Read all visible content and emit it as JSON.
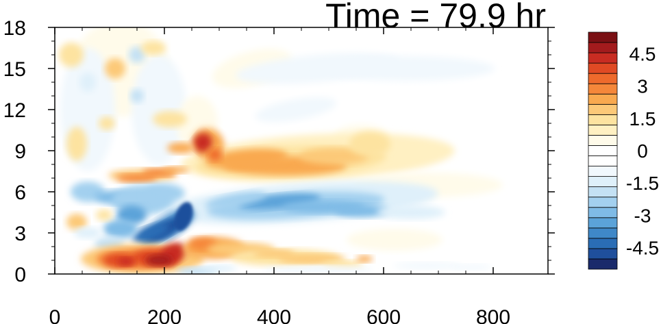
{
  "chart_data": {
    "type": "heatmap",
    "title": "Time = 79.9 hr",
    "xlabel": "",
    "ylabel": "",
    "xlim": [
      0,
      900
    ],
    "ylim": [
      0,
      18
    ],
    "x_ticks": [
      0,
      200,
      400,
      600,
      800
    ],
    "y_ticks": [
      0,
      3,
      6,
      9,
      12,
      15,
      18
    ],
    "colorbar": {
      "levels": [
        -5.5,
        -5,
        -4.5,
        -4,
        -3.5,
        -3,
        -2.5,
        -2,
        -1.5,
        -1,
        -0.5,
        0,
        0.5,
        1,
        1.5,
        2,
        2.5,
        3,
        3.5,
        4,
        4.5,
        5,
        5.5
      ],
      "labels": [
        "4.5",
        "3",
        "1.5",
        "0",
        "-1.5",
        "-3",
        "-4.5"
      ],
      "label_values": [
        4.5,
        3,
        1.5,
        0,
        -1.5,
        -3,
        -4.5
      ],
      "colors": [
        "#1a2a6b",
        "#1f4f9c",
        "#2a6db5",
        "#3f88c8",
        "#5ba3d9",
        "#7fbbe6",
        "#a3d0ef",
        "#c4e1f4",
        "#dff0fa",
        "#f1f8fd",
        "#ffffff",
        "#ffffff",
        "#fffbea",
        "#fff0c2",
        "#fde3a0",
        "#fcc978",
        "#f9a94f",
        "#f5873a",
        "#ee6a2c",
        "#e04a24",
        "#c82c22",
        "#a31b1d",
        "#7a1014"
      ]
    },
    "features": [
      {
        "name": "lower warm band",
        "x": [
          80,
          230
        ],
        "y": [
          0.5,
          2
        ],
        "value": 4.5
      },
      {
        "name": "lower warm tail",
        "x": [
          230,
          560
        ],
        "y": [
          0.6,
          2.2
        ],
        "value": 2
      },
      {
        "name": "blue streak",
        "x": [
          100,
          245
        ],
        "y": [
          2.5,
          6
        ],
        "value": -4.5
      },
      {
        "name": "blue band",
        "x": [
          300,
          600
        ],
        "y": [
          4,
          6
        ],
        "value": -3
      },
      {
        "name": "warm band",
        "x": [
          300,
          560
        ],
        "y": [
          7,
          9.5
        ],
        "value": 2.5
      },
      {
        "name": "warm knot",
        "x": [
          250,
          300
        ],
        "y": [
          8.5,
          10.5
        ],
        "value": 4.5
      },
      {
        "name": "upper warm patch",
        "x": [
          90,
          230
        ],
        "y": [
          7,
          8.5
        ],
        "value": 2
      },
      {
        "name": "upper-left noise",
        "x": [
          0,
          260
        ],
        "y": [
          9,
          18
        ],
        "value": 1.5
      }
    ]
  }
}
